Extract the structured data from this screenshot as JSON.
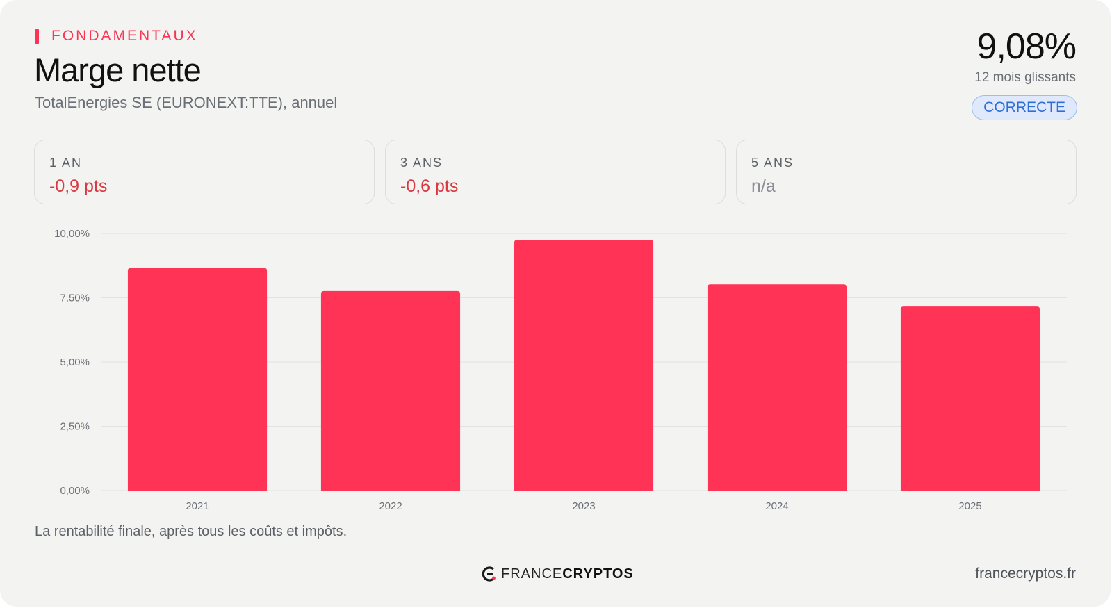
{
  "header": {
    "eyebrow": "FONDAMENTAUX",
    "title": "Marge nette",
    "subtitle": "TotalEnergies SE (EURONEXT:TTE), annuel"
  },
  "kpi": {
    "value": "9,08%",
    "caption": "12 mois glissants",
    "badge": "CORRECTE"
  },
  "stats": [
    {
      "label": "1 AN",
      "value": "-0,9 pts"
    },
    {
      "label": "3 ANS",
      "value": "-0,6 pts"
    },
    {
      "label": "5 ANS",
      "value": "n/a"
    }
  ],
  "chart_data": {
    "type": "bar",
    "categories": [
      "2021",
      "2022",
      "2023",
      "2024",
      "2025"
    ],
    "values": [
      8.66,
      7.76,
      9.75,
      8.02,
      7.16
    ],
    "ylim": [
      0,
      10
    ],
    "yticks": [
      0,
      2.5,
      5,
      7.5,
      10
    ],
    "ytick_labels": [
      "0,00%",
      "2,50%",
      "5,00%",
      "7,50%",
      "10,00%"
    ],
    "grid": true,
    "legend": "none",
    "bar_color": "#ff3355"
  },
  "footer": {
    "note": "La rentabilité finale, après tous les coûts et impôts.",
    "logo_part1": "FRANCE",
    "logo_part2": "CRYPTOS",
    "site": "francecryptos.fr"
  },
  "colors": {
    "accent": "#ff3355",
    "negative": "#d8383f",
    "badge_text": "#2f6fd6"
  }
}
